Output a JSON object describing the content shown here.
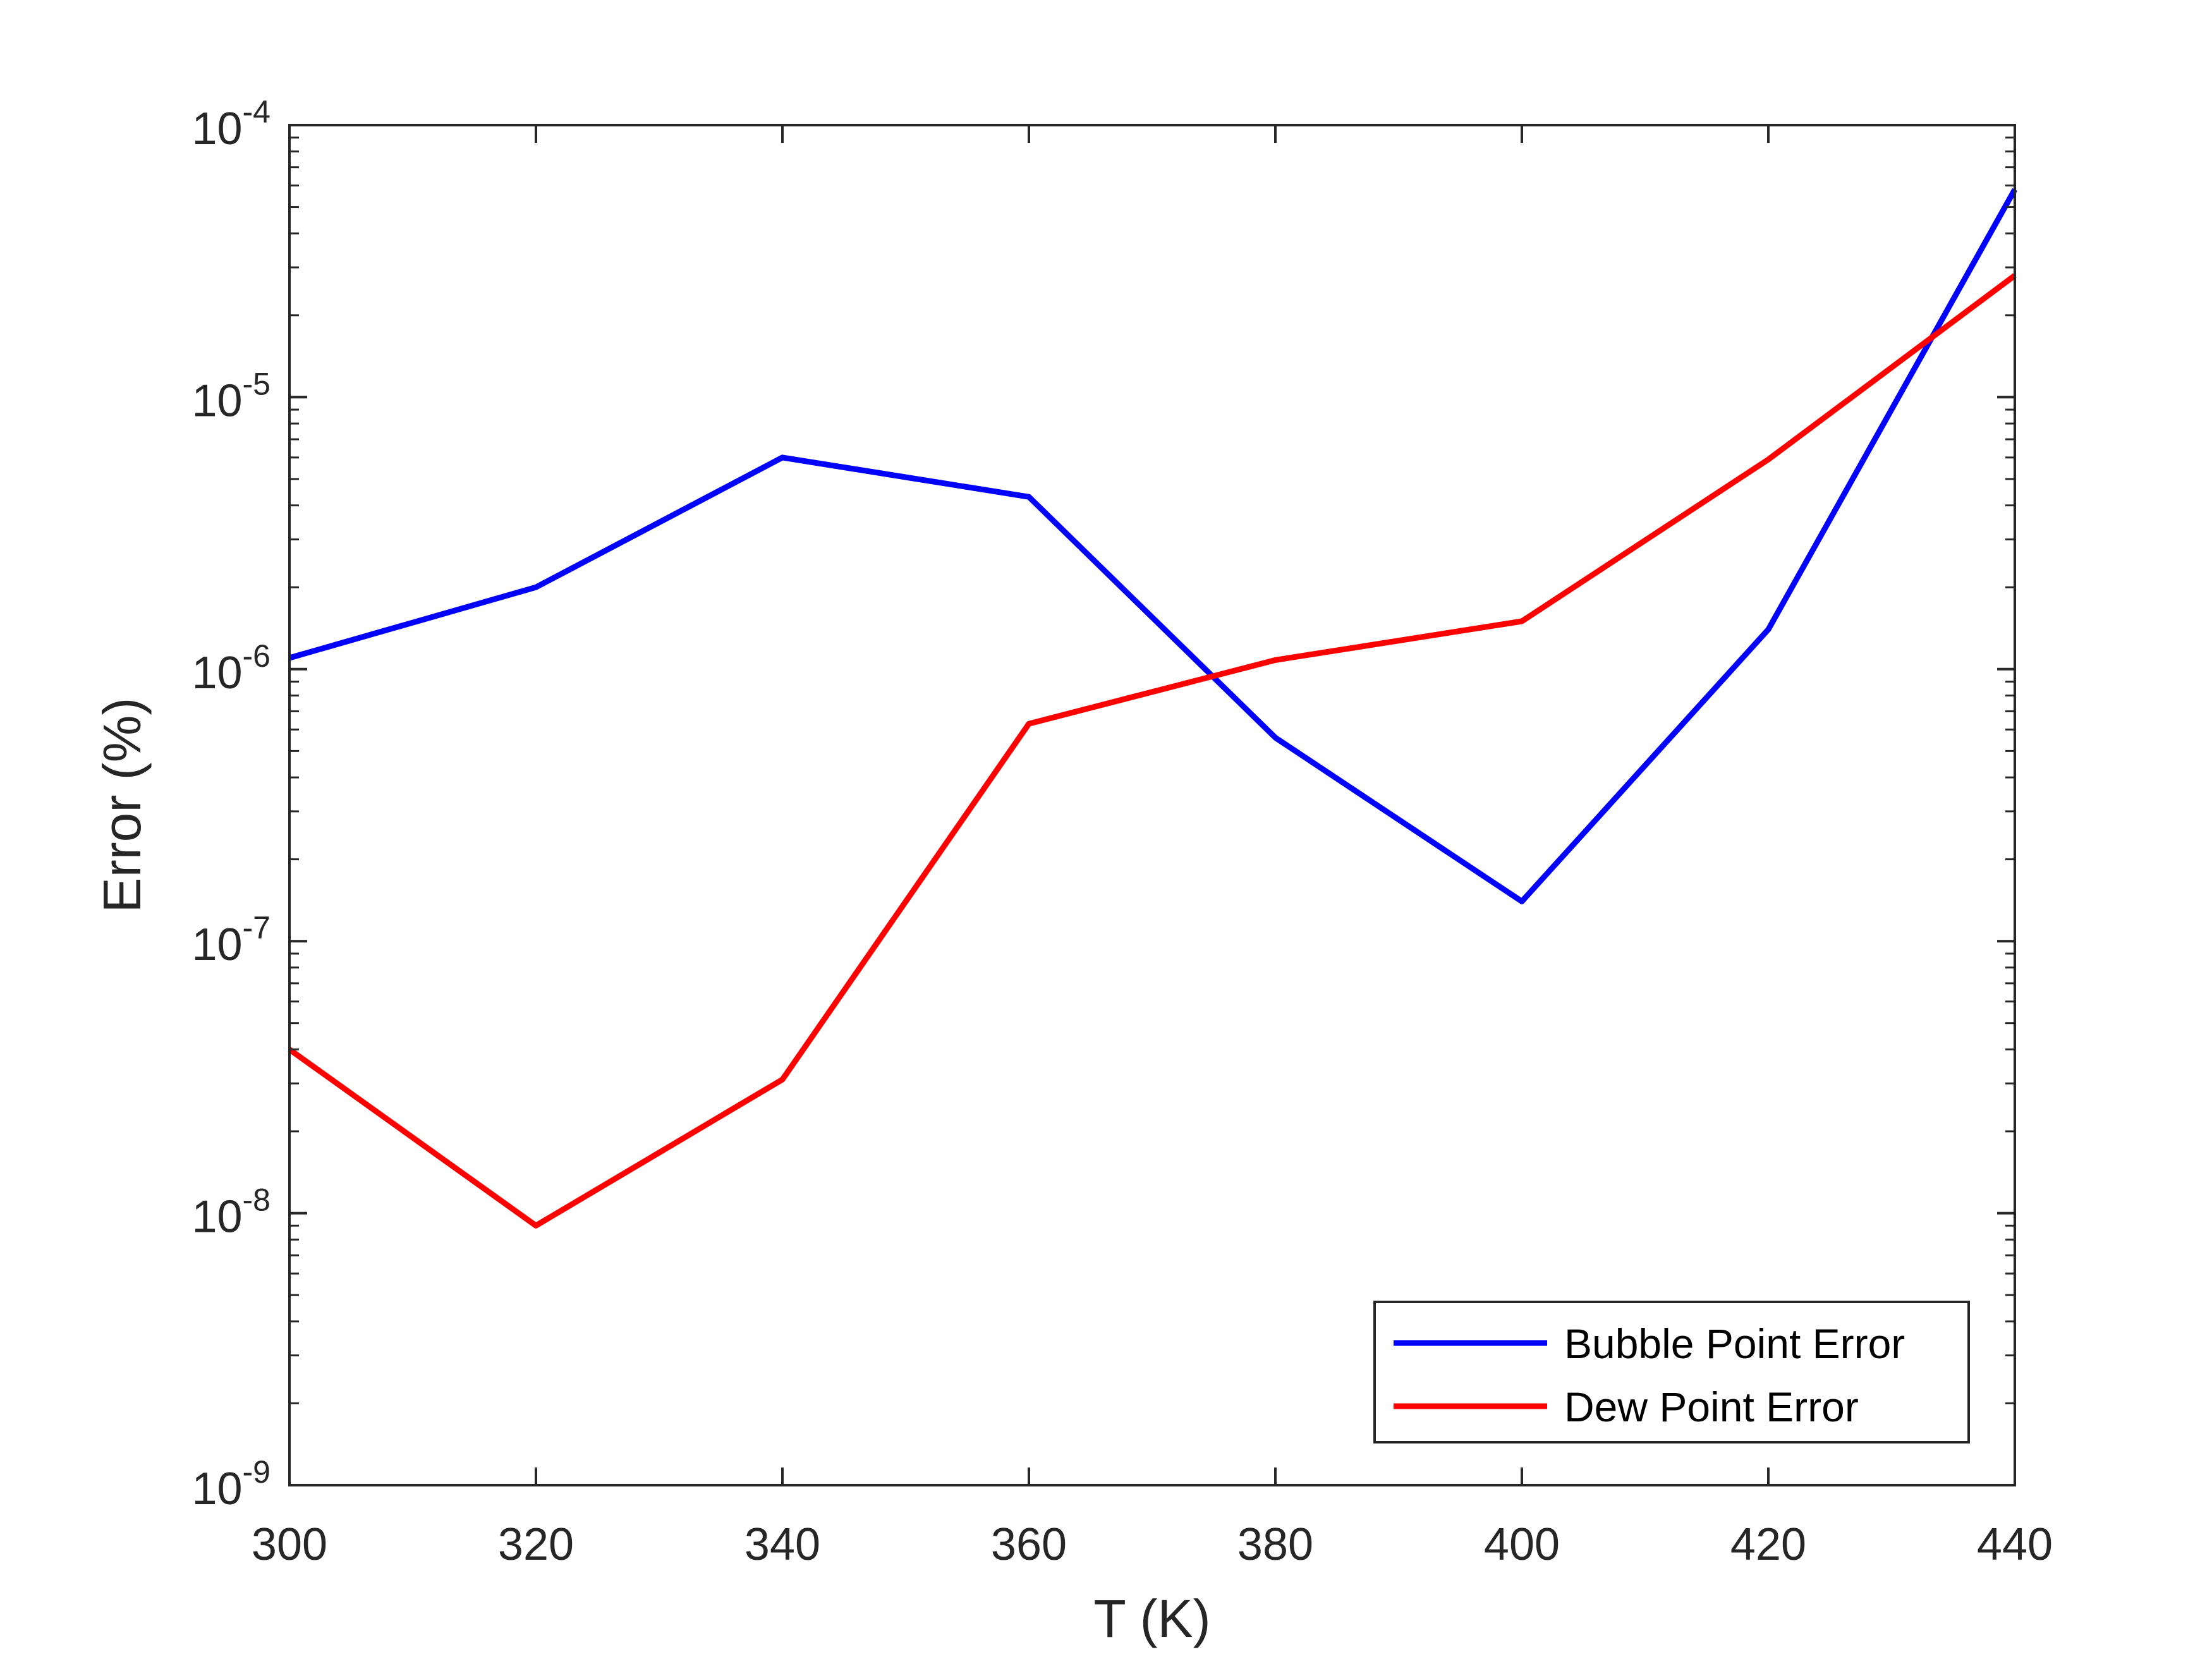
{
  "chart_data": {
    "type": "line",
    "title": "",
    "xlabel": "T (K)",
    "ylabel": "Error (%)",
    "xlim": [
      300,
      440
    ],
    "ylim": [
      1e-09,
      0.0001
    ],
    "yscale": "log",
    "grid": false,
    "legend_position": "bottom-right",
    "x": [
      300,
      320,
      340,
      360,
      380,
      400,
      420,
      440
    ],
    "xticks": [
      300,
      320,
      340,
      360,
      380,
      400,
      420,
      440
    ],
    "xtick_labels": [
      "300",
      "320",
      "340",
      "360",
      "380",
      "400",
      "420",
      "440"
    ],
    "yticks": [
      {
        "value": 1e-09,
        "base": "10",
        "exp": "-9"
      },
      {
        "value": 1e-08,
        "base": "10",
        "exp": "-8"
      },
      {
        "value": 1e-07,
        "base": "10",
        "exp": "-7"
      },
      {
        "value": 1e-06,
        "base": "10",
        "exp": "-6"
      },
      {
        "value": 1e-05,
        "base": "10",
        "exp": "-5"
      },
      {
        "value": 0.0001,
        "base": "10",
        "exp": "-4"
      }
    ],
    "series": [
      {
        "name": "Bubble Point Error",
        "color": "#0000ff",
        "values": [
          1.1e-06,
          2e-06,
          6e-06,
          4.3e-06,
          5.6e-07,
          1.4e-07,
          1.4e-06,
          5.8e-05
        ]
      },
      {
        "name": "Dew Point Error",
        "color": "#ff0000",
        "values": [
          4e-08,
          9e-09,
          3.1e-08,
          6.3e-07,
          1.08e-06,
          1.5e-06,
          5.9e-06,
          2.8e-05
        ]
      }
    ]
  }
}
